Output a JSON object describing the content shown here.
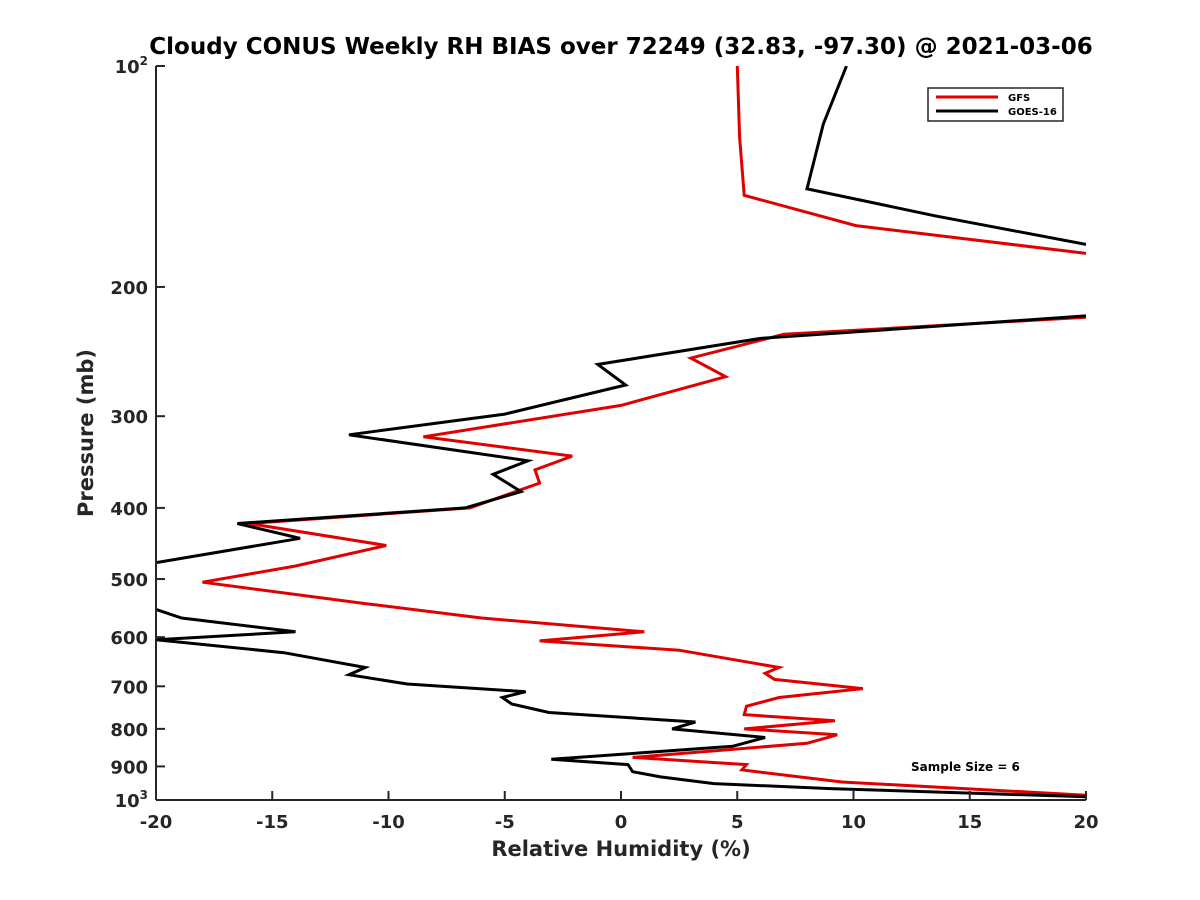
{
  "chart_data": {
    "type": "line",
    "title": "Cloudy CONUS Weekly RH BIAS over 72249 (32.83, -97.30) @ 2021-03-06",
    "xlabel": "Relative Humidity (%)",
    "ylabel": "Pressure (mb)",
    "xlim": [
      -20,
      20
    ],
    "ylim": [
      1000,
      100
    ],
    "yscale": "log",
    "xticks": [
      "-20",
      "-15",
      "-10",
      "-5",
      "0",
      "5",
      "10",
      "15",
      "20"
    ],
    "yticks": [
      {
        "value": 100,
        "base": "10",
        "sup": "2"
      },
      {
        "value": 200,
        "label": "200"
      },
      {
        "value": 300,
        "label": "300"
      },
      {
        "value": 400,
        "label": "400"
      },
      {
        "value": 500,
        "label": "500"
      },
      {
        "value": 600,
        "label": "600"
      },
      {
        "value": 700,
        "label": "700"
      },
      {
        "value": 800,
        "label": "800"
      },
      {
        "value": 900,
        "label": "900"
      },
      {
        "value": 1000,
        "base": "10",
        "sup": "3"
      }
    ],
    "legend_position": "top-right",
    "annotation": "Sample Size = 6",
    "series": [
      {
        "name": "GFS",
        "color": "#e00000",
        "points": [
          [
            5.0,
            100
          ],
          [
            5.1,
            125
          ],
          [
            5.3,
            150
          ],
          [
            10.1,
            165
          ],
          [
            20,
            180
          ],
          [
            null,
            205
          ],
          [
            20,
            220
          ],
          [
            7.0,
            232
          ],
          [
            3.0,
            250
          ],
          [
            4.5,
            265
          ],
          [
            0.0,
            290
          ],
          [
            -8.5,
            320
          ],
          [
            -2.1,
            340
          ],
          [
            -3.7,
            355
          ],
          [
            -3.5,
            370
          ],
          [
            -6.5,
            400
          ],
          [
            -16.0,
            420
          ],
          [
            -10.1,
            450
          ],
          [
            -14.0,
            480
          ],
          [
            -18.0,
            505
          ],
          [
            -11.0,
            540
          ],
          [
            -6.0,
            565
          ],
          [
            1.0,
            590
          ],
          [
            -3.5,
            607
          ],
          [
            2.5,
            625
          ],
          [
            6.8,
            660
          ],
          [
            6.2,
            672
          ],
          [
            6.6,
            685
          ],
          [
            10.4,
            705
          ],
          [
            6.8,
            725
          ],
          [
            5.4,
            745
          ],
          [
            5.3,
            765
          ],
          [
            9.2,
            780
          ],
          [
            5.3,
            800
          ],
          [
            9.3,
            815
          ],
          [
            8.0,
            837
          ],
          [
            0.5,
            875
          ],
          [
            5.4,
            895
          ],
          [
            5.2,
            910
          ],
          [
            9.5,
            945
          ],
          [
            20,
            985
          ]
        ]
      },
      {
        "name": "GOES-16",
        "color": "#000000",
        "points": [
          [
            9.7,
            100
          ],
          [
            8.7,
            120
          ],
          [
            8.0,
            147
          ],
          [
            13.5,
            160
          ],
          [
            20,
            175
          ],
          [
            null,
            205
          ],
          [
            20,
            219
          ],
          [
            6.0,
            235
          ],
          [
            -1.0,
            255
          ],
          [
            0.2,
            272
          ],
          [
            -5.0,
            298
          ],
          [
            -11.7,
            318
          ],
          [
            -4.0,
            345
          ],
          [
            -5.5,
            360
          ],
          [
            -4.3,
            380
          ],
          [
            -6.7,
            400
          ],
          [
            -16.5,
            420
          ],
          [
            -13.8,
            440
          ],
          [
            -20.0,
            475
          ],
          [
            null,
            510
          ],
          [
            -20.0,
            550
          ],
          [
            -18.9,
            565
          ],
          [
            -14.0,
            590
          ],
          [
            -20.0,
            605
          ],
          [
            -14.5,
            630
          ],
          [
            -11.0,
            660
          ],
          [
            -11.7,
            675
          ],
          [
            -9.2,
            695
          ],
          [
            -4.1,
            712
          ],
          [
            -5.1,
            725
          ],
          [
            -4.7,
            740
          ],
          [
            -3.1,
            760
          ],
          [
            3.2,
            783
          ],
          [
            2.2,
            800
          ],
          [
            6.2,
            822
          ],
          [
            4.8,
            845
          ],
          [
            -3.0,
            880
          ],
          [
            0.3,
            895
          ],
          [
            0.5,
            915
          ],
          [
            1.7,
            930
          ],
          [
            4.0,
            950
          ],
          [
            9.0,
            965
          ],
          [
            20,
            990
          ]
        ]
      }
    ]
  }
}
